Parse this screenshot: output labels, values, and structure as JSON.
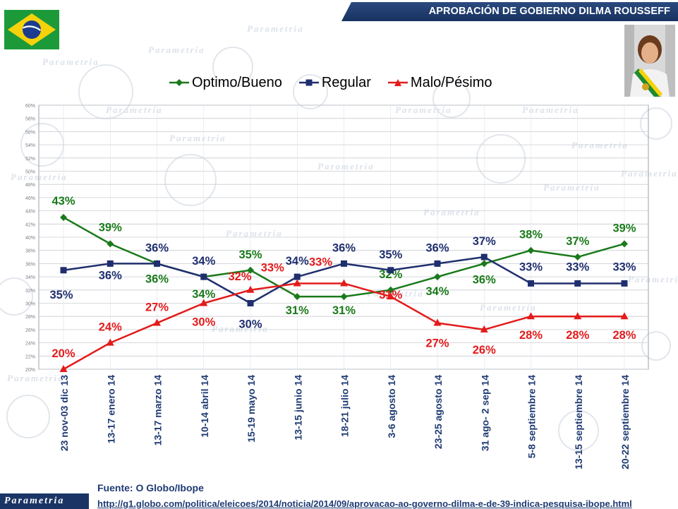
{
  "title": "APROBACIÓN DE GOBIERNO DILMA ROUSSEFF",
  "watermark_text": "Parametria",
  "footer": {
    "logo_text": "Parametria",
    "source_label": "Fuente: O Globo/Ibope",
    "source_url": "http://g1.globo.com/politica/eleicoes/2014/noticia/2014/09/aprovacao-ao-governo-dilma-e-de-39-indica-pesquisa-ibope.html"
  },
  "colors": {
    "title_bar": "#1f3b6e",
    "optimo": "#1a7a1a",
    "regular": "#1f2f6e",
    "malo": "#e31b1b",
    "text_blue": "#1f3b73"
  },
  "chart_data": {
    "type": "line",
    "categories": [
      "23 nov-03 dic 13",
      "13-17 enero 14",
      "13-17 marzo 14",
      "10-14 abril 14",
      "15-19 mayo 14",
      "13-15 junio 14",
      "18-21 julio 14",
      "3-6 agosto 14",
      "23-25 agosto 14",
      "31 ago- 2 sep 14",
      "5-8 septiembre 14",
      "13-15 septiembre 14",
      "20-22 septiembre 14"
    ],
    "series": [
      {
        "name": "Optimo/Bueno",
        "color": "#1a7a1a",
        "marker": "diamond",
        "values": [
          43,
          39,
          36,
          34,
          35,
          31,
          31,
          32,
          34,
          36,
          38,
          37,
          39
        ]
      },
      {
        "name": "Regular",
        "color": "#1f2f6e",
        "marker": "square",
        "values": [
          35,
          36,
          36,
          34,
          30,
          34,
          36,
          35,
          36,
          37,
          33,
          33,
          33
        ]
      },
      {
        "name": "Malo/Pésimo",
        "color": "#e31b1b",
        "marker": "triangle",
        "values": [
          20,
          24,
          27,
          30,
          32,
          33,
          33,
          31,
          27,
          26,
          28,
          28,
          28
        ]
      }
    ],
    "y_ticks": [
      "20%",
      "22%",
      "24%",
      "26%",
      "28%",
      "30%",
      "32%",
      "34%",
      "36%",
      "38%",
      "40%",
      "42%",
      "44%",
      "46%",
      "48%",
      "50%",
      "52%",
      "54%",
      "56%",
      "58%",
      "60%"
    ],
    "ylim": [
      20,
      60
    ],
    "y_tick_step": 2,
    "grid": true,
    "legend_position": "top-center",
    "data_labels": [
      {
        "series": 0,
        "text": [
          "43%",
          "39%",
          "36%",
          "34%",
          "35%",
          "31%",
          "31%",
          "32%",
          "34%",
          "36%",
          "38%",
          "37%",
          "39%"
        ]
      },
      {
        "series": 1,
        "text": [
          "35%",
          "36%",
          "36%",
          "34%",
          "30%",
          "34%",
          "36%",
          "35%",
          "36%",
          "37%",
          "33%",
          "33%",
          "33%"
        ]
      },
      {
        "series": 2,
        "text": [
          "20%",
          "24%",
          "27%",
          "30%",
          "32%",
          "33%",
          "33%",
          "31%",
          "27%",
          "26%",
          "28%",
          "28%",
          "28%"
        ]
      }
    ]
  }
}
